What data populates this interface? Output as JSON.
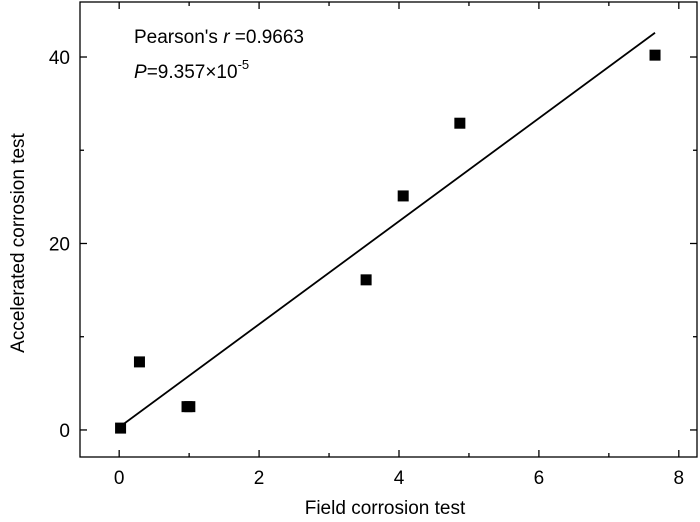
{
  "chart_data": {
    "type": "scatter",
    "x_label": "Field corrosion test",
    "y_label": "Accelerated corrosion test",
    "annotations": [
      {
        "prefix": "Pearson's ",
        "symbol": "r",
        "text": " =0.9663"
      },
      {
        "symbol": "P",
        "text": "=9.357×10",
        "exponent": "-5"
      }
    ],
    "series": [
      {
        "color": "#000000",
        "x": [
          0.02,
          0.29,
          0.97,
          1.01,
          3.53,
          4.06,
          4.87,
          7.66
        ],
        "values": [
          0.2,
          7.3,
          2.5,
          2.5,
          16.1,
          25.1,
          32.9,
          40.2
        ]
      }
    ],
    "fit_line": {
      "color": "#000000",
      "x": [
        0.02,
        7.66
      ],
      "values": [
        0.4,
        42.6
      ]
    },
    "xlim": [
      -0.56,
      8.26
    ],
    "ylim": [
      -2.9,
      45.9
    ],
    "xticks": [
      0,
      2,
      4,
      6,
      8
    ],
    "yticks": [
      0,
      20,
      40
    ],
    "xminor_ticks": [
      1,
      3,
      5,
      7
    ],
    "yminor_ticks": [
      10,
      30
    ]
  }
}
